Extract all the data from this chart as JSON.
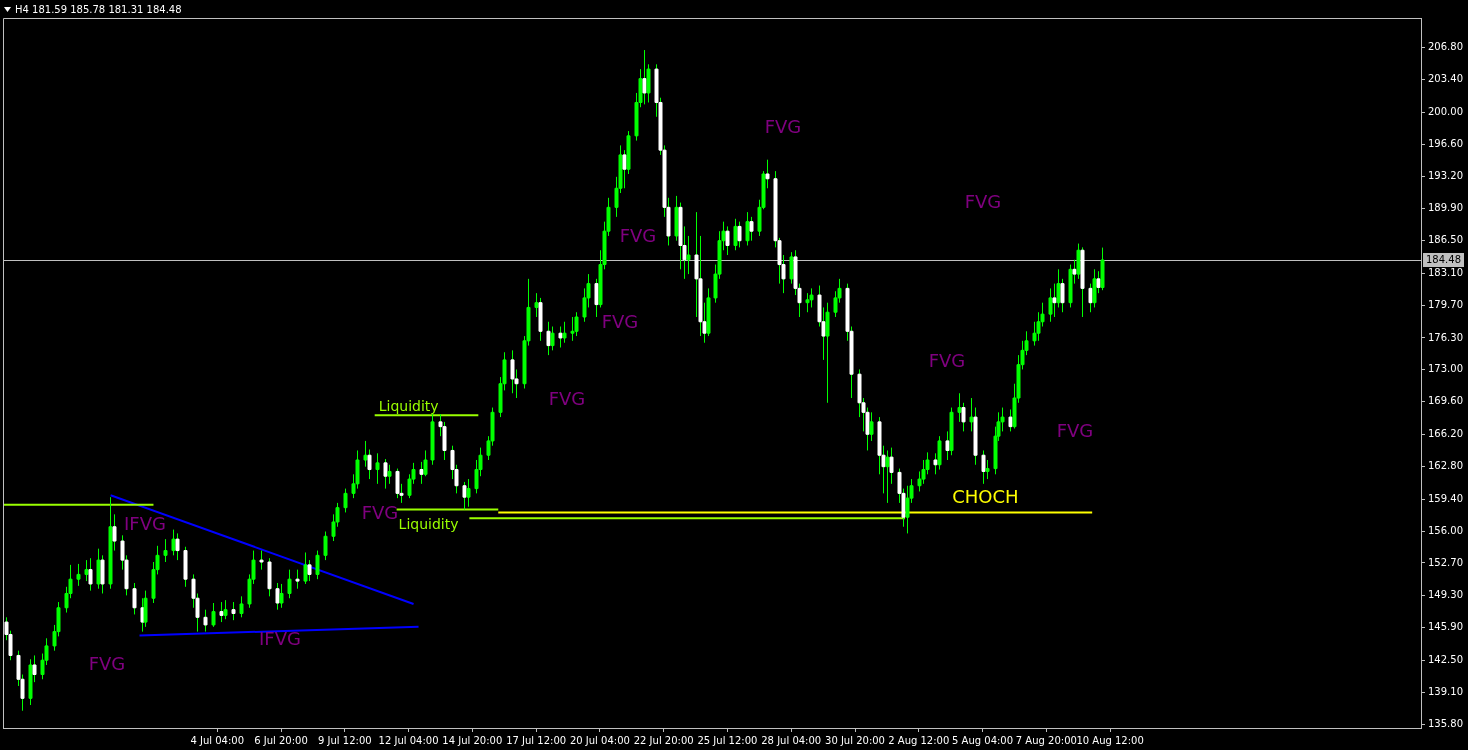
{
  "chart_data": {
    "type": "candlestick",
    "title": "H4 181.59 185.78 181.31 184.48",
    "color": "#00ff00",
    "grid": false,
    "legend": false,
    "xlim": [
      "--06-25T05:00",
      "--08-23T12:00"
    ],
    "ylim": [
      135.39,
      209.86
    ],
    "xticks": [
      {
        "value": "--07-04T04:00",
        "label": "4 Jul 04:00"
      },
      {
        "value": "--07-06T20:00",
        "label": "6 Jul 20:00"
      },
      {
        "value": "--07-09T12:00",
        "label": "9 Jul 12:00"
      },
      {
        "value": "--07-12T04:00",
        "label": "12 Jul 04:00"
      },
      {
        "value": "--07-14T20:00",
        "label": "14 Jul 20:00"
      },
      {
        "value": "--07-17T12:00",
        "label": "17 Jul 12:00"
      },
      {
        "value": "--07-20T04:00",
        "label": "20 Jul 04:00"
      },
      {
        "value": "--07-22T20:00",
        "label": "22 Jul 20:00"
      },
      {
        "value": "--07-25T12:00",
        "label": "25 Jul 12:00"
      },
      {
        "value": "--07-28T04:00",
        "label": "28 Jul 04:00"
      },
      {
        "value": "--07-30T20:00",
        "label": "30 Jul 20:00"
      },
      {
        "value": "--08-02T12:00",
        "label": "2 Aug 12:00"
      },
      {
        "value": "--08-05T04:00",
        "label": "5 Aug 04:00"
      },
      {
        "value": "--08-07T20:00",
        "label": "7 Aug 20:00"
      },
      {
        "value": "--08-10T12:00",
        "label": "10 Aug 12:00"
      }
    ],
    "yticks": [
      {
        "value": 135.8,
        "label": "135.80"
      },
      {
        "value": 139.1,
        "label": "139.10"
      },
      {
        "value": 142.5,
        "label": "142.50"
      },
      {
        "value": 145.9,
        "label": "145.90"
      },
      {
        "value": 149.3,
        "label": "149.30"
      },
      {
        "value": 152.7,
        "label": "152.70"
      },
      {
        "value": 156.0,
        "label": "156.00"
      },
      {
        "value": 159.4,
        "label": "159.40"
      },
      {
        "value": 162.8,
        "label": "162.80"
      },
      {
        "value": 166.2,
        "label": "166.20"
      },
      {
        "value": 169.6,
        "label": "169.60"
      },
      {
        "value": 173.0,
        "label": "173.00"
      },
      {
        "value": 176.3,
        "label": "176.30"
      },
      {
        "value": 179.7,
        "label": "179.70"
      },
      {
        "value": 183.1,
        "label": "183.10"
      },
      {
        "value": 186.5,
        "label": "186.50"
      },
      {
        "value": 189.9,
        "label": "189.90"
      },
      {
        "value": 193.2,
        "label": "193.20"
      },
      {
        "value": 196.6,
        "label": "196.60"
      },
      {
        "value": 200.0,
        "label": "200.00"
      },
      {
        "value": 203.4,
        "label": "203.40"
      },
      {
        "value": 206.8,
        "label": "206.80"
      }
    ],
    "x": [
      "--06-25T08:00",
      "--06-25T12:00",
      "--06-25T20:00",
      "--06-26T00:00",
      "--06-26T08:00",
      "--06-26T12:00",
      "--06-26T20:00",
      "--06-27T00:00",
      "--06-27T08:00",
      "--06-27T12:00",
      "--06-27T20:00",
      "--06-28T00:00",
      "--06-28T08:00",
      "--06-28T16:00",
      "--06-28T20:00",
      "--06-29T04:00",
      "--06-29T08:00",
      "--06-29T16:00",
      "--06-29T20:00",
      "--06-30T04:00",
      "--06-30T08:00",
      "--06-30T16:00",
      "--07-01T00:00",
      "--07-01T04:00",
      "--07-01T12:00",
      "--07-01T16:00",
      "--07-02T00:00",
      "--07-02T08:00",
      "--07-02T12:00",
      "--07-02T20:00",
      "--07-03T04:00",
      "--07-03T08:00",
      "--07-03T16:00",
      "--07-04T00:00",
      "--07-04T08:00",
      "--07-04T12:00",
      "--07-04T20:00",
      "--07-05T04:00",
      "--07-05T12:00",
      "--07-05T16:00",
      "--07-06T00:00",
      "--07-06T08:00",
      "--07-06T16:00",
      "--07-06T20:00",
      "--07-07T04:00",
      "--07-07T12:00",
      "--07-07T20:00",
      "--07-08T00:00",
      "--07-08T08:00",
      "--07-08T16:00",
      "--07-09T00:00",
      "--07-09T04:00",
      "--07-09T12:00",
      "--07-09T20:00",
      "--07-10T00:00",
      "--07-10T08:00",
      "--07-10T12:00",
      "--07-10T20:00",
      "--07-11T04:00",
      "--07-11T08:00",
      "--07-11T16:00",
      "--07-11T20:00",
      "--07-12T04:00",
      "--07-12T08:00",
      "--07-12T16:00",
      "--07-12T20:00",
      "--07-13T04:00",
      "--07-13T12:00",
      "--07-13T16:00",
      "--07-14T00:00",
      "--07-14T04:00",
      "--07-14T12:00",
      "--07-14T16:00",
      "--07-15T00:00",
      "--07-15T04:00",
      "--07-15T12:00",
      "--07-15T16:00",
      "--07-16T00:00",
      "--07-16T04:00",
      "--07-16T12:00",
      "--07-16T16:00",
      "--07-17T00:00",
      "--07-17T04:00",
      "--07-17T12:00",
      "--07-17T16:00",
      "--07-18T00:00",
      "--07-18T04:00",
      "--07-18T12:00",
      "--07-18T16:00",
      "--07-19T00:00",
      "--07-19T04:00",
      "--07-19T12:00",
      "--07-19T16:00",
      "--07-20T00:00",
      "--07-20T04:00",
      "--07-20T08:00",
      "--07-20T12:00",
      "--07-20T20:00",
      "--07-21T00:00",
      "--07-21T04:00",
      "--07-21T08:00",
      "--07-21T16:00",
      "--07-21T20:00",
      "--07-22T00:00",
      "--07-22T04:00",
      "--07-22T12:00",
      "--07-22T16:00",
      "--07-22T20:00",
      "--07-23T00:00",
      "--07-23T08:00",
      "--07-23T12:00",
      "--07-23T16:00",
      "--07-23T20:00",
      "--07-24T04:00",
      "--07-24T08:00",
      "--07-24T12:00",
      "--07-24T16:00",
      "--07-25T00:00",
      "--07-25T04:00",
      "--07-25T08:00",
      "--07-25T12:00",
      "--07-25T20:00",
      "--07-26T00:00",
      "--07-26T08:00",
      "--07-26T12:00",
      "--07-26T20:00",
      "--07-27T00:00",
      "--07-27T04:00",
      "--07-27T12:00",
      "--07-27T16:00",
      "--07-27T20:00",
      "--07-28T04:00",
      "--07-28T08:00",
      "--07-28T12:00",
      "--07-28T20:00",
      "--07-29T00:00",
      "--07-29T08:00",
      "--07-29T12:00",
      "--07-29T16:00",
      "--07-30T00:00",
      "--07-30T04:00",
      "--07-30T12:00",
      "--07-30T16:00",
      "--07-31T00:00",
      "--07-31T04:00",
      "--07-31T08:00",
      "--07-31T12:00",
      "--07-31T20:00",
      "--08-01T00:00",
      "--08-01T04:00",
      "--08-01T08:00",
      "--08-01T16:00",
      "--08-01T20:00",
      "--08-02T00:00",
      "--08-02T04:00",
      "--08-02T12:00",
      "--08-02T16:00",
      "--08-02T20:00",
      "--08-03T04:00",
      "--08-03T08:00",
      "--08-03T16:00",
      "--08-03T20:00",
      "--08-04T04:00",
      "--08-04T08:00",
      "--08-04T16:00",
      "--08-04T20:00",
      "--08-05T04:00",
      "--08-05T08:00",
      "--08-05T16:00",
      "--08-05T20:00",
      "--08-06T00:00",
      "--08-06T08:00",
      "--08-06T12:00",
      "--08-06T16:00",
      "--08-06T20:00",
      "--08-07T00:00",
      "--08-07T08:00",
      "--08-07T12:00",
      "--08-07T16:00",
      "--08-08T00:00",
      "--08-08T04:00",
      "--08-08T08:00",
      "--08-08T12:00",
      "--08-08T20:00",
      "--08-09T00:00",
      "--08-09T04:00",
      "--08-09T08:00",
      "--08-09T16:00",
      "--08-09T20:00",
      "--08-10T00:00",
      "--08-10T04:00"
    ],
    "colors": [
      "#ffffff",
      "#ffffff",
      "#ffffff",
      "#ffffff",
      "#00ff00",
      "#ffffff",
      "#00ff00",
      "#00ff00",
      "#00ff00",
      "#00ff00",
      "#00ff00",
      "#00ff00",
      "#00ff00",
      "#00ff00",
      "#ffffff",
      "#00ff00",
      "#ffffff",
      "#00ff00",
      "#ffffff",
      "#ffffff",
      "#ffffff",
      "#ffffff",
      "#ffffff",
      "#00ff00",
      "#00ff00",
      "#00ff00",
      "#00ff00",
      "#00ff00",
      "#ffffff",
      "#ffffff",
      "#ffffff",
      "#ffffff",
      "#ffffff",
      "#00ff00",
      "#ffffff",
      "#00ff00",
      "#ffffff",
      "#00ff00",
      "#00ff00",
      "#00ff00",
      "#ffffff",
      "#ffffff",
      "#ffffff",
      "#00ff00",
      "#00ff00",
      "#ffffff",
      "#00ff00",
      "#ffffff",
      "#00ff00",
      "#00ff00",
      "#00ff00",
      "#00ff00",
      "#00ff00",
      "#00ff00",
      "#00ff00",
      "#00ff00",
      "#ffffff",
      "#00ff00",
      "#ffffff",
      "#00ff00",
      "#ffffff",
      "#ffffff",
      "#00ff00",
      "#00ff00",
      "#ffffff",
      "#00ff00",
      "#00ff00",
      "#ffffff",
      "#ffffff",
      "#ffffff",
      "#ffffff",
      "#ffffff",
      "#00ff00",
      "#00ff00",
      "#00ff00",
      "#00ff00",
      "#00ff00",
      "#00ff00",
      "#00ff00",
      "#ffffff",
      "#ffffff",
      "#00ff00",
      "#00ff00",
      "#00ff00",
      "#ffffff",
      "#ffffff",
      "#00ff00",
      "#ffffff",
      "#00ff00",
      "#00ff00",
      "#00ff00",
      "#00ff00",
      "#00ff00",
      "#ffffff",
      "#00ff00",
      "#00ff00",
      "#00ff00",
      "#00ff00",
      "#00ff00",
      "#ffffff",
      "#00ff00",
      "#00ff00",
      "#00ff00",
      "#ffffff",
      "#00ff00",
      "#ffffff",
      "#ffffff",
      "#ffffff",
      "#ffffff",
      "#00ff00",
      "#ffffff",
      "#ffffff",
      "#00ff00",
      "#ffffff",
      "#ffffff",
      "#ffffff",
      "#00ff00",
      "#00ff00",
      "#00ff00",
      "#00ff00",
      "#ffffff",
      "#00ff00",
      "#ffffff",
      "#00ff00",
      "#ffffff",
      "#00ff00",
      "#00ff00",
      "#ffffff",
      "#ffffff",
      "#ffffff",
      "#ffffff",
      "#00ff00",
      "#ffffff",
      "#ffffff",
      "#00ff00",
      "#00ff00",
      "#ffffff",
      "#ffffff",
      "#00ff00",
      "#00ff00",
      "#00ff00",
      "#ffffff",
      "#ffffff",
      "#ffffff",
      "#ffffff",
      "#ffffff",
      "#00ff00",
      "#ffffff",
      "#ffffff",
      "#00ff00",
      "#ffffff",
      "#ffffff",
      "#ffffff",
      "#00ff00",
      "#00ff00",
      "#00ff00",
      "#00ff00",
      "#00ff00",
      "#ffffff",
      "#00ff00",
      "#ffffff",
      "#00ff00",
      "#00ff00",
      "#ffffff",
      "#00ff00",
      "#ffffff",
      "#ffffff",
      "#00ff00",
      "#00ff00",
      "#00ff00",
      "#00ff00",
      "#ffffff",
      "#00ff00",
      "#00ff00",
      "#00ff00",
      "#00ff00",
      "#00ff00",
      "#00ff00",
      "#00ff00",
      "#00ff00",
      "#ffffff",
      "#00ff00",
      "#ffffff",
      "#00ff00",
      "#ffffff",
      "#00ff00",
      "#ffffff",
      "#ffffff",
      "#00ff00",
      "#ffffff",
      "#00ff00"
    ],
    "ohlc": [
      [
        146.5,
        147.0,
        144.6,
        145.2
      ],
      [
        145.2,
        145.6,
        142.5,
        143.0
      ],
      [
        143.0,
        143.5,
        139.8,
        140.5
      ],
      [
        140.5,
        141.0,
        137.2,
        138.5
      ],
      [
        138.5,
        142.6,
        137.8,
        142.0
      ],
      [
        142.0,
        143.0,
        140.2,
        141.0
      ],
      [
        141.0,
        143.2,
        140.5,
        142.5
      ],
      [
        142.5,
        144.8,
        142.0,
        144.0
      ],
      [
        144.0,
        146.2,
        143.5,
        145.5
      ],
      [
        145.5,
        148.6,
        145.0,
        148.0
      ],
      [
        148.0,
        150.2,
        147.5,
        149.5
      ],
      [
        149.5,
        152.5,
        149.0,
        151.0
      ],
      [
        151.0,
        152.6,
        150.3,
        151.5
      ],
      [
        151.5,
        153.0,
        150.8,
        152.0
      ],
      [
        152.0,
        153.2,
        149.8,
        150.5
      ],
      [
        150.5,
        154.2,
        150.0,
        153.0
      ],
      [
        153.0,
        153.5,
        149.5,
        150.5
      ],
      [
        150.5,
        159.6,
        150.0,
        156.5
      ],
      [
        156.5,
        157.8,
        154.0,
        155.0
      ],
      [
        155.0,
        155.6,
        152.0,
        153.0
      ],
      [
        153.0,
        153.5,
        149.3,
        150.0
      ],
      [
        150.0,
        150.6,
        147.3,
        148.0
      ],
      [
        148.0,
        149.0,
        145.5,
        146.5
      ],
      [
        146.5,
        149.8,
        146.0,
        149.0
      ],
      [
        149.0,
        152.8,
        148.5,
        152.0
      ],
      [
        152.0,
        154.5,
        151.5,
        153.5
      ],
      [
        153.5,
        155.2,
        152.8,
        154.0
      ],
      [
        154.0,
        156.2,
        153.5,
        155.2
      ],
      [
        155.2,
        155.8,
        153.0,
        154.0
      ],
      [
        154.0,
        154.4,
        150.2,
        151.0
      ],
      [
        151.0,
        151.5,
        148.0,
        149.0
      ],
      [
        149.0,
        149.5,
        145.5,
        147.0
      ],
      [
        147.0,
        147.8,
        145.5,
        146.2
      ],
      [
        146.2,
        148.5,
        146.0,
        147.6
      ],
      [
        147.6,
        148.6,
        146.5,
        147.2
      ],
      [
        147.2,
        148.8,
        146.8,
        147.8
      ],
      [
        147.8,
        148.6,
        146.7,
        147.4
      ],
      [
        147.4,
        149.2,
        147.0,
        148.4
      ],
      [
        148.4,
        151.5,
        148.0,
        151.0
      ],
      [
        151.0,
        154.0,
        150.5,
        153.0
      ],
      [
        153.0,
        154.0,
        152.0,
        152.8
      ],
      [
        152.8,
        153.2,
        149.2,
        150.0
      ],
      [
        150.0,
        150.6,
        147.8,
        148.5
      ],
      [
        148.5,
        150.5,
        148.0,
        149.5
      ],
      [
        149.5,
        152.0,
        149.0,
        151.0
      ],
      [
        151.0,
        152.0,
        150.0,
        150.8
      ],
      [
        150.8,
        153.8,
        150.5,
        152.5
      ],
      [
        152.5,
        153.0,
        150.8,
        151.5
      ],
      [
        151.5,
        154.0,
        151.0,
        153.5
      ],
      [
        153.5,
        156.0,
        153.0,
        155.5
      ],
      [
        155.5,
        157.8,
        155.0,
        157.0
      ],
      [
        157.0,
        159.0,
        156.5,
        158.5
      ],
      [
        158.5,
        160.5,
        158.0,
        160.0
      ],
      [
        160.0,
        162.0,
        159.5,
        161.0
      ],
      [
        161.0,
        164.5,
        160.5,
        163.5
      ],
      [
        163.5,
        165.5,
        162.8,
        164.0
      ],
      [
        164.0,
        164.6,
        161.5,
        162.5
      ],
      [
        162.5,
        164.2,
        161.0,
        163.2
      ],
      [
        163.2,
        163.6,
        160.5,
        161.8
      ],
      [
        161.8,
        163.0,
        161.0,
        162.3
      ],
      [
        162.3,
        162.6,
        159.5,
        160.0
      ],
      [
        160.0,
        161.0,
        159.0,
        159.8
      ],
      [
        159.8,
        162.0,
        159.5,
        161.5
      ],
      [
        161.5,
        163.2,
        161.0,
        162.5
      ],
      [
        162.5,
        163.3,
        161.0,
        162.0
      ],
      [
        162.0,
        164.5,
        161.8,
        163.5
      ],
      [
        163.5,
        168.3,
        163.0,
        167.5
      ],
      [
        167.5,
        168.3,
        166.0,
        167.0
      ],
      [
        167.0,
        167.5,
        163.5,
        164.5
      ],
      [
        164.5,
        165.0,
        161.5,
        162.5
      ],
      [
        162.5,
        163.0,
        160.0,
        160.8
      ],
      [
        160.8,
        161.2,
        158.3,
        159.6
      ],
      [
        159.6,
        161.5,
        158.6,
        160.5
      ],
      [
        160.5,
        163.5,
        160.0,
        162.5
      ],
      [
        162.5,
        164.8,
        161.8,
        164.0
      ],
      [
        164.0,
        166.0,
        163.5,
        165.5
      ],
      [
        165.5,
        169.0,
        165.0,
        168.5
      ],
      [
        168.5,
        172.2,
        168.0,
        171.5
      ],
      [
        171.5,
        174.8,
        170.8,
        174.0
      ],
      [
        174.0,
        175.0,
        170.5,
        172.0
      ],
      [
        172.0,
        173.0,
        170.0,
        171.5
      ],
      [
        171.5,
        176.5,
        171.0,
        176.0
      ],
      [
        176.0,
        182.5,
        175.5,
        179.5
      ],
      [
        179.5,
        181.0,
        178.5,
        180.0
      ],
      [
        180.0,
        180.5,
        176.0,
        177.0
      ],
      [
        177.0,
        178.0,
        174.5,
        175.5
      ],
      [
        175.5,
        177.5,
        175.0,
        176.8
      ],
      [
        176.8,
        177.5,
        175.3,
        176.3
      ],
      [
        176.3,
        178.0,
        175.8,
        176.8
      ],
      [
        176.8,
        178.5,
        176.0,
        177.0
      ],
      [
        177.0,
        179.0,
        176.5,
        178.5
      ],
      [
        178.5,
        181.5,
        178.0,
        180.5
      ],
      [
        180.5,
        183.0,
        179.5,
        182.0
      ],
      [
        182.0,
        182.5,
        178.5,
        179.8
      ],
      [
        179.8,
        185.5,
        179.5,
        184.0
      ],
      [
        184.0,
        188.5,
        183.5,
        187.5
      ],
      [
        187.5,
        191.0,
        187.0,
        190.0
      ],
      [
        190.0,
        193.2,
        189.0,
        192.0
      ],
      [
        192.0,
        196.5,
        191.5,
        195.5
      ],
      [
        195.5,
        196.0,
        192.0,
        194.0
      ],
      [
        194.0,
        198.0,
        193.5,
        197.5
      ],
      [
        197.5,
        202.0,
        197.0,
        201.0
      ],
      [
        201.0,
        204.5,
        200.5,
        203.5
      ],
      [
        203.5,
        206.5,
        200.8,
        202.0
      ],
      [
        202.0,
        205.0,
        201.0,
        204.5
      ],
      [
        204.5,
        205.0,
        199.5,
        201.0
      ],
      [
        201.0,
        201.5,
        195.5,
        196.0
      ],
      [
        196.0,
        196.5,
        189.0,
        190.0
      ],
      [
        190.0,
        191.0,
        186.0,
        187.0
      ],
      [
        187.0,
        191.2,
        186.5,
        190.0
      ],
      [
        190.0,
        190.5,
        183.5,
        186.0
      ],
      [
        186.0,
        188.0,
        182.5,
        184.5
      ],
      [
        184.5,
        187.0,
        183.0,
        185.0
      ],
      [
        185.0,
        189.5,
        178.5,
        182.5
      ],
      [
        182.5,
        187.0,
        176.5,
        178.0
      ],
      [
        178.0,
        180.0,
        175.8,
        176.8
      ],
      [
        176.8,
        181.5,
        176.5,
        180.5
      ],
      [
        180.5,
        184.0,
        180.0,
        183.0
      ],
      [
        183.0,
        187.5,
        182.5,
        186.5
      ],
      [
        186.5,
        188.5,
        185.5,
        187.5
      ],
      [
        187.5,
        188.0,
        185.0,
        186.0
      ],
      [
        186.0,
        188.8,
        185.5,
        188.0
      ],
      [
        188.0,
        188.5,
        185.8,
        186.5
      ],
      [
        186.5,
        189.5,
        186.0,
        188.5
      ],
      [
        188.5,
        189.0,
        186.5,
        187.5
      ],
      [
        187.5,
        190.8,
        187.0,
        190.0
      ],
      [
        190.0,
        193.8,
        189.8,
        193.5
      ],
      [
        193.5,
        195.0,
        192.0,
        193.0
      ],
      [
        193.0,
        193.8,
        185.8,
        186.5
      ],
      [
        186.5,
        186.8,
        182.0,
        184.0
      ],
      [
        184.0,
        185.0,
        181.0,
        182.5
      ],
      [
        182.5,
        185.3,
        182.0,
        184.8
      ],
      [
        184.8,
        185.5,
        180.8,
        181.5
      ],
      [
        181.5,
        182.0,
        178.5,
        180.0
      ],
      [
        180.0,
        181.0,
        179.0,
        180.3
      ],
      [
        180.3,
        181.5,
        179.5,
        180.8
      ],
      [
        180.8,
        181.8,
        177.5,
        178.0
      ],
      [
        178.0,
        179.5,
        174.0,
        176.5
      ],
      [
        176.5,
        180.0,
        169.5,
        179.0
      ],
      [
        179.0,
        181.2,
        178.5,
        180.5
      ],
      [
        180.5,
        182.5,
        180.0,
        181.5
      ],
      [
        181.5,
        182.0,
        176.0,
        177.0
      ],
      [
        177.0,
        177.5,
        170.0,
        172.5
      ],
      [
        172.5,
        173.0,
        168.0,
        169.5
      ],
      [
        169.5,
        170.0,
        166.5,
        168.5
      ],
      [
        168.5,
        169.0,
        164.5,
        166.2
      ],
      [
        166.2,
        168.5,
        165.5,
        167.5
      ],
      [
        167.5,
        168.0,
        162.0,
        164.0
      ],
      [
        164.0,
        165.0,
        160.0,
        162.8
      ],
      [
        162.8,
        164.5,
        159.0,
        163.8
      ],
      [
        163.8,
        164.8,
        161.0,
        162.2
      ],
      [
        162.2,
        162.6,
        159.0,
        160.0
      ],
      [
        160.0,
        160.5,
        156.5,
        157.5
      ],
      [
        157.5,
        160.8,
        155.8,
        159.5
      ],
      [
        159.5,
        161.5,
        159.0,
        160.8
      ],
      [
        160.8,
        162.3,
        160.2,
        161.5
      ],
      [
        161.5,
        163.5,
        161.0,
        162.5
      ],
      [
        162.5,
        164.3,
        162.0,
        163.5
      ],
      [
        163.5,
        164.2,
        162.0,
        163.0
      ],
      [
        163.0,
        166.0,
        162.5,
        165.5
      ],
      [
        165.5,
        166.5,
        163.5,
        164.5
      ],
      [
        164.5,
        169.0,
        164.0,
        168.5
      ],
      [
        168.5,
        170.5,
        167.5,
        169.0
      ],
      [
        169.0,
        169.5,
        166.5,
        167.5
      ],
      [
        167.5,
        170.0,
        166.5,
        168.0
      ],
      [
        168.0,
        169.0,
        163.0,
        164.0
      ],
      [
        164.0,
        164.5,
        161.0,
        162.3
      ],
      [
        162.3,
        163.5,
        161.5,
        162.6
      ],
      [
        162.6,
        167.0,
        162.0,
        166.0
      ],
      [
        166.0,
        168.5,
        165.5,
        167.5
      ],
      [
        167.5,
        169.0,
        166.5,
        168.0
      ],
      [
        168.0,
        168.8,
        166.5,
        167.0
      ],
      [
        167.0,
        171.5,
        166.8,
        170.0
      ],
      [
        170.0,
        174.5,
        169.5,
        173.5
      ],
      [
        173.5,
        176.0,
        173.0,
        175.0
      ],
      [
        175.0,
        177.0,
        174.5,
        176.0
      ],
      [
        176.0,
        178.0,
        175.5,
        176.8
      ],
      [
        176.8,
        179.0,
        176.0,
        178.0
      ],
      [
        178.0,
        180.0,
        177.5,
        178.8
      ],
      [
        178.8,
        181.5,
        178.0,
        180.5
      ],
      [
        180.5,
        182.0,
        178.5,
        180.0
      ],
      [
        180.0,
        183.5,
        179.5,
        182.0
      ],
      [
        182.0,
        182.5,
        179.0,
        180.0
      ],
      [
        180.0,
        184.0,
        179.5,
        183.5
      ],
      [
        183.5,
        184.5,
        182.0,
        183.0
      ],
      [
        183.0,
        186.2,
        182.5,
        185.5
      ],
      [
        185.5,
        185.8,
        178.5,
        181.5
      ],
      [
        181.5,
        182.0,
        179.0,
        180.0
      ],
      [
        180.0,
        183.5,
        179.5,
        182.5
      ],
      [
        182.5,
        183.3,
        181.0,
        181.6
      ],
      [
        181.59,
        185.78,
        181.31,
        184.48
      ]
    ],
    "series": [
      {
        "type": "line",
        "color": "#9aff00",
        "x": [
          "--06-25T06:00",
          "--07-01T12:00"
        ],
        "values": [
          158.8,
          158.8
        ]
      },
      {
        "type": "line",
        "color": "#0000ff",
        "x": [
          "--06-29T17:00",
          "--07-12T09:00"
        ],
        "values": [
          159.8,
          148.4
        ]
      },
      {
        "type": "line",
        "color": "#0000ff",
        "x": [
          "--06-30T22:00",
          "--07-12T14:00"
        ],
        "values": [
          145.1,
          146.0
        ]
      },
      {
        "type": "line",
        "name": "Liquidity",
        "color": "#9aff00",
        "x": [
          "--07-10T18:00",
          "--07-15T02:00"
        ],
        "values": [
          168.2,
          168.2
        ]
      },
      {
        "type": "line",
        "name": "Liquidity",
        "color": "#9aff00",
        "x": [
          "--07-11T16:00",
          "--07-15T22:00"
        ],
        "values": [
          158.3,
          158.3
        ]
      },
      {
        "type": "line",
        "color": "#9aff00",
        "x": [
          "--07-14T17:00",
          "--08-01T22:00"
        ],
        "values": [
          157.4,
          157.4
        ]
      },
      {
        "type": "line",
        "name": "CHOCH",
        "color": "#ffff00",
        "x": [
          "--07-15T22:00",
          "--08-09T18:00"
        ],
        "values": [
          158.0,
          158.0
        ]
      }
    ],
    "ref_lines": [
      {
        "axis": "y",
        "value": 184.48,
        "label": "184.48",
        "color": "#c0c0c0"
      }
    ],
    "annotations": [
      "IFVG",
      "IFVG",
      "FVG",
      "FVG",
      "FVG",
      "FVG",
      "FVG",
      "FVG",
      "FVG",
      "FVG",
      "FVG"
    ]
  }
}
